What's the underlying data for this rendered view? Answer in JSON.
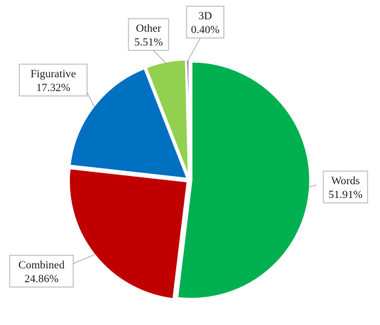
{
  "chart_data": {
    "type": "pie",
    "title": "",
    "slices": [
      {
        "name": "Words",
        "value": 51.91,
        "label": "51.91%",
        "color": "#00b050"
      },
      {
        "name": "Combined",
        "value": 24.86,
        "label": "24.86%",
        "color": "#c00000"
      },
      {
        "name": "Figurative",
        "value": 17.32,
        "label": "17.32%",
        "color": "#0070c0"
      },
      {
        "name": "Other",
        "value": 5.51,
        "label": "5.51%",
        "color": "#92d050"
      },
      {
        "name": "3D",
        "value": 0.4,
        "label": "0.40%",
        "color": "#7030a0"
      }
    ],
    "legend": "none",
    "data_labels": "category name and percentage, boxed with leader lines"
  }
}
